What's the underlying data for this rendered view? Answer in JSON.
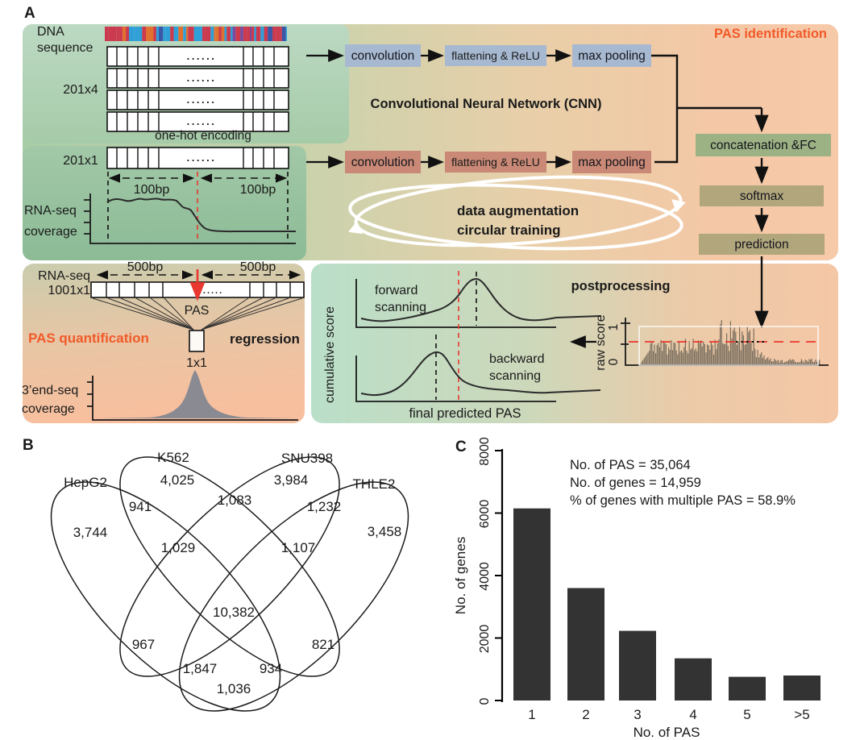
{
  "figure": {
    "panel_a_label": "A",
    "panel_b_label": "B",
    "panel_c_label": "C"
  },
  "panelA": {
    "dna_label_line1": "DNA",
    "dna_label_line2": "sequence",
    "matrix_dim": "201x4",
    "one_hot_label": "one-hot encoding",
    "dots": "......",
    "dna_strip_colors": [
      "#2f9fd8",
      "#cb3a4e",
      "#e0712e",
      "#7b4a9e",
      "#3b57a8"
    ],
    "cnn_row1": {
      "convolution": "convolution",
      "flattening": "flattening & ReLU",
      "max_pooling": "max pooling"
    },
    "cnn_row2": {
      "convolution": "convolution",
      "flattening": "flattening & ReLU",
      "max_pooling": "max pooling"
    },
    "cnn_title": "Convolutional Neural Network (CNN)",
    "pas_identification_title": "PAS identification",
    "vector_dim": "201x1",
    "bp100_left": "100bp",
    "bp100_right": "100bp",
    "rnaseq_cov_line1": "RNA-seq",
    "rnaseq_cov_line2": "coverage",
    "augmentation_line1": "data augmentation",
    "augmentation_line2": "circular training",
    "concatenation": "concatenation &FC",
    "softmax": "softmax",
    "prediction": "prediction",
    "rnaseq_label": "RNA-seq",
    "input_dim": "1001x1",
    "bp500_left": "500bp",
    "bp500_right": "500bp",
    "pas_arrow_label": "PAS",
    "pas_quantification_title": "PAS quantification",
    "regression_label": "regression",
    "output_dim": "1x1",
    "endseq_line1": "3’end-seq",
    "endseq_line2": "coverage",
    "postprocessing_title": "postprocessing",
    "cumulative_score_label": "cumulative score",
    "forward_line1": "forward",
    "forward_line2": "scanning",
    "backward_line1": "backward",
    "backward_line2": "scanning",
    "final_pas_label": "final predicted PAS",
    "raw_score_label": "raw score",
    "raw_tick_top": "1",
    "raw_tick_bottom": "0",
    "accent_orange": "#f15a29"
  },
  "panelB": {
    "sets": [
      {
        "name": "HepG2"
      },
      {
        "name": "K562"
      },
      {
        "name": "SNU398"
      },
      {
        "name": "THLE2"
      }
    ],
    "counts": {
      "hepg2_only": "3,744",
      "k562_only": "4,025",
      "snu398_only": "3,984",
      "thle2_only": "3,458",
      "hepg2_k562": "941",
      "k562_snu398": "1,083",
      "snu398_thle2": "1,232",
      "hepg2_snu398": "967",
      "k562_thle2": "821",
      "hepg2_thle2": "1,036",
      "hepg2_k562_snu398": "1,029",
      "k562_snu398_thle2": "1,107",
      "hepg2_snu398_thle2": "1,847",
      "hepg2_k562_thle2": "934",
      "all_four": "10,382"
    }
  },
  "chart_data": {
    "type": "bar",
    "categories": [
      "1",
      "2",
      "3",
      "4",
      "5",
      ">5"
    ],
    "values": [
      6150,
      3600,
      2230,
      1350,
      760,
      800
    ],
    "title": "",
    "xlabel": "No. of PAS",
    "ylabel": "No. of genes",
    "ylim": [
      0,
      8000
    ],
    "yticks": [
      0,
      2000,
      4000,
      6000,
      8000
    ],
    "grid": false,
    "legend": false,
    "bar_color": "#333333",
    "annotations": [
      "No. of PAS = 35,064",
      "No. of genes = 14,959",
      "% of genes with multiple PAS = 58.9%"
    ]
  }
}
